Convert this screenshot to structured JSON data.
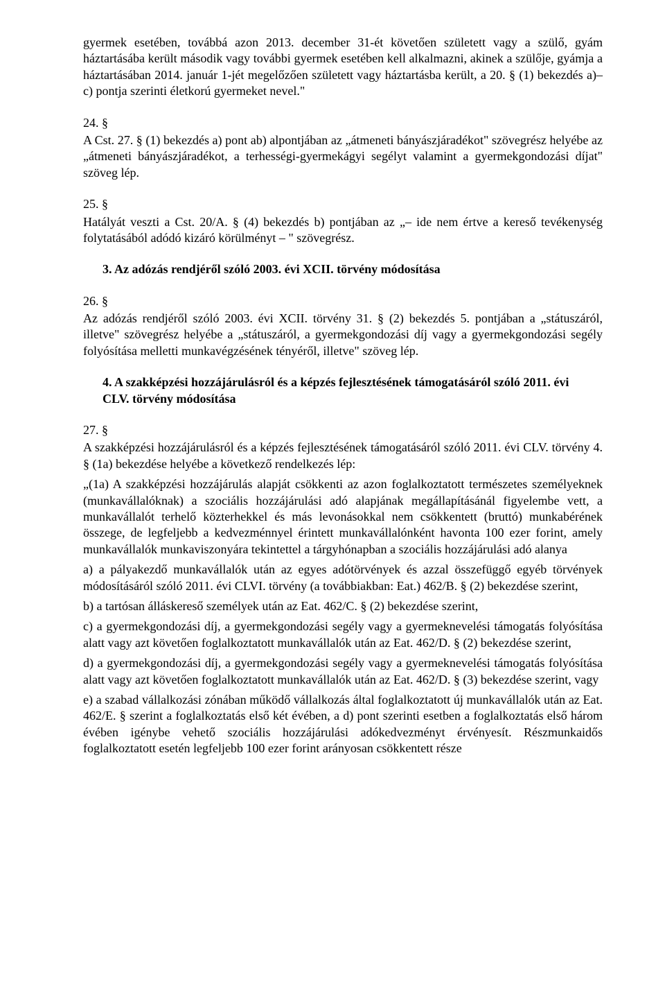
{
  "p_intro": "gyermek esetében, továbbá azon 2013. december 31-ét követően született vagy a szülő, gyám háztartásába került második vagy további gyermek esetében kell alkalmazni, akinek a szülője, gyámja a háztartásában 2014. január 1-jét megelőzően született vagy háztartásba került, a 20. § (1) bekezdés a)–c) pontja szerinti életkorú gyermeket nevel.\"",
  "s24_num": "24. §",
  "s24_body": "A Cst. 27. § (1) bekezdés a) pont ab) alpontjában az „átmeneti bányászjáradékot\" szövegrész helyébe az „átmeneti bányászjáradékot, a terhességi-gyermekágyi segélyt valamint a gyermekgondozási díjat\" szöveg lép.",
  "s25_num": "25. §",
  "s25_body": "Hatályát veszti a Cst. 20/A. § (4) bekezdés b) pontjában az „– ide nem értve a kereső tevékenység folytatásából adódó kizáró körülményt – \" szövegrész.",
  "h3": "3.  Az adózás rendjéről szóló 2003. évi XCII. törvény módosítása",
  "s26_num": "26. §",
  "s26_body": "Az adózás rendjéről szóló 2003. évi XCII. törvény 31. § (2) bekezdés 5. pontjában a „státuszáról, illetve\" szövegrész helyébe a „státuszáról, a gyermekgondozási díj vagy a gyermekgondozási segély folyósítása melletti munkavégzésének tényéről, illetve\" szöveg lép.",
  "h4": "4.  A szakképzési hozzájárulásról és a képzés fejlesztésének támogatásáról szóló 2011. évi CLV. törvény módosítása",
  "s27_num": "27. §",
  "s27_lead": "A szakképzési hozzájárulásról és a képzés fejlesztésének támogatásáról szóló 2011. évi CLV. törvény 4. § (1a) bekezdése helyébe a következő rendelkezés lép:",
  "s27_1a": "„(1a) A szakképzési hozzájárulás alapját csökkenti az azon foglalkoztatott természetes személyeknek (munkavállalóknak) a szociális hozzájárulási adó alapjának megállapításánál figyelembe vett, a munkavállalót terhelő közterhekkel és más levonásokkal nem csökkentett (bruttó) munkabérének összege, de legfeljebb a kedvezménnyel érintett munkavállalónként havonta 100 ezer forint, amely munkavállalók munkaviszonyára tekintettel a tárgyhónapban a szociális hozzájárulási adó alanya",
  "s27_a": "a) a pályakezdő munkavállalók után az egyes adótörvények és azzal összefüggő egyéb törvények módosításáról szóló 2011. évi CLVI. törvény (a továbbiakban: Eat.) 462/B. § (2) bekezdése szerint,",
  "s27_b": "b) a tartósan álláskereső személyek után az Eat. 462/C. § (2) bekezdése szerint,",
  "s27_c": "c) a gyermekgondozási díj, a gyermekgondozási segély vagy a gyermeknevelési támogatás folyósítása alatt vagy azt követően foglalkoztatott munkavállalók után az Eat. 462/D. § (2) bekezdése szerint,",
  "s27_d": "d) a gyermekgondozási díj, a gyermekgondozási segély vagy a gyermeknevelési támogatás folyósítása alatt vagy azt követően foglalkoztatott munkavállalók után az Eat. 462/D. § (3) bekezdése szerint, vagy",
  "s27_e": "e) a szabad vállalkozási zónában működő vállalkozás által foglalkoztatott új munkavállalók után az Eat. 462/E. § szerint a foglalkoztatás első két évében, a d) pont szerinti esetben a foglalkoztatás első három évében igénybe vehető szociális hozzájárulási adókedvezményt érvényesít. Részmunkaidős foglalkoztatott esetén legfeljebb 100 ezer forint arányosan csökkentett része"
}
